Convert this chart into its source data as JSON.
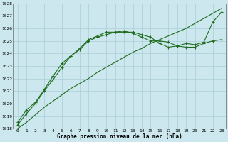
{
  "xlabel": "Graphe pression niveau de la mer (hPa)",
  "xlim": [
    -0.5,
    23.5
  ],
  "ylim": [
    1018,
    1028
  ],
  "yticks": [
    1018,
    1019,
    1020,
    1021,
    1022,
    1023,
    1024,
    1025,
    1026,
    1027,
    1028
  ],
  "xticks": [
    0,
    1,
    2,
    3,
    4,
    5,
    6,
    7,
    8,
    9,
    10,
    11,
    12,
    13,
    14,
    15,
    16,
    17,
    18,
    19,
    20,
    21,
    22,
    23
  ],
  "background_color": "#cce8ee",
  "grid_color": "#aacdd6",
  "line_color": "#1e6b1e",
  "line1_x": [
    0,
    1,
    2,
    3,
    4,
    5,
    6,
    7,
    8,
    9,
    10,
    11,
    12,
    13,
    14,
    15,
    16,
    17,
    18,
    19,
    20,
    21,
    22,
    23
  ],
  "line1_y": [
    1018.0,
    1018.5,
    1019.1,
    1019.7,
    1020.2,
    1020.7,
    1021.2,
    1021.6,
    1022.0,
    1022.5,
    1022.9,
    1023.3,
    1023.7,
    1024.1,
    1024.4,
    1024.8,
    1025.1,
    1025.4,
    1025.7,
    1026.0,
    1026.4,
    1026.8,
    1027.2,
    1027.6
  ],
  "line2_x": [
    0,
    1,
    2,
    3,
    4,
    5,
    6,
    7,
    8,
    9,
    10,
    11,
    12,
    13,
    14,
    15,
    16,
    17,
    18,
    19,
    20,
    21,
    22,
    23
  ],
  "line2_y": [
    1018.5,
    1019.5,
    1020.1,
    1021.1,
    1022.2,
    1023.2,
    1023.8,
    1024.3,
    1025.0,
    1025.3,
    1025.5,
    1025.7,
    1025.7,
    1025.7,
    1025.5,
    1025.3,
    1024.8,
    1024.5,
    1024.6,
    1024.8,
    1024.7,
    1024.9,
    1026.5,
    1027.3
  ],
  "line3_x": [
    0,
    1,
    2,
    3,
    4,
    5,
    6,
    7,
    8,
    9,
    10,
    11,
    12,
    13,
    14,
    15,
    16,
    17,
    18,
    19,
    20,
    21,
    22,
    23
  ],
  "line3_y": [
    1018.3,
    1019.2,
    1020.0,
    1021.0,
    1021.9,
    1022.9,
    1023.8,
    1024.4,
    1025.1,
    1025.4,
    1025.7,
    1025.7,
    1025.8,
    1025.6,
    1025.3,
    1025.0,
    1025.0,
    1024.9,
    1024.6,
    1024.5,
    1024.5,
    1024.8,
    1025.0,
    1025.1
  ]
}
